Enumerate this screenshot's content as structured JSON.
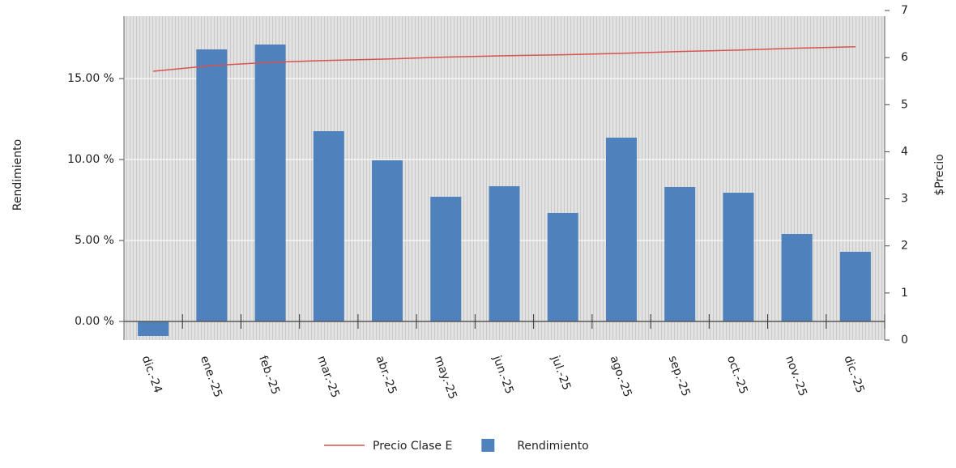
{
  "chart_data": {
    "type": "bar",
    "categories": [
      "dic.-24",
      "ene.-25",
      "feb.-25",
      "mar.-25",
      "abr.-25",
      "may.-25",
      "jun.-25",
      "jul.-25",
      "ago.-25",
      "sep.-25",
      "oct.-25",
      "nov.-25",
      "dic.-25"
    ],
    "series": [
      {
        "name": "Precio Clase E",
        "type": "line",
        "axis": "y2",
        "color": "#d9534f",
        "values": [
          5.71,
          5.83,
          5.9,
          5.94,
          5.97,
          6.01,
          6.04,
          6.06,
          6.09,
          6.13,
          6.16,
          6.2,
          6.23
        ]
      },
      {
        "name": "Rendimiento",
        "type": "bar",
        "color": "#4f81bd",
        "values": [
          -0.9,
          16.8,
          17.1,
          11.75,
          9.95,
          7.7,
          8.35,
          6.7,
          11.35,
          8.3,
          7.95,
          5.4,
          4.3
        ]
      }
    ],
    "y_label": "Rendimiento",
    "y2_label": "$Precio",
    "ylim": [
      -1.15,
      19.2
    ],
    "yticks": [
      {
        "value": 0,
        "label": "0.00 %"
      },
      {
        "value": 5,
        "label": "5.00 %"
      },
      {
        "value": 10,
        "label": "10.00 %"
      },
      {
        "value": 15,
        "label": "15.00 %"
      }
    ],
    "y2lim": [
      0,
      7
    ],
    "y2ticks": [
      0,
      1,
      2,
      3,
      4,
      5,
      6,
      7
    ],
    "grid": true,
    "legend": "bottom"
  }
}
